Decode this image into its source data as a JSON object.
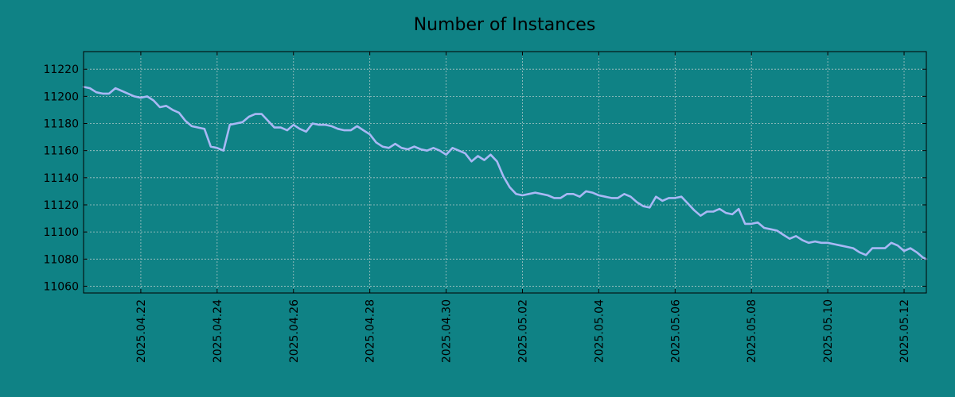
{
  "chart_data": {
    "type": "line",
    "title": "Number of Instances",
    "xlabel": "",
    "ylabel": "",
    "x_axis_type": "date",
    "xlim": [
      "2025-04-20 12:00",
      "2025-05-12 14:00"
    ],
    "ylim": [
      11055,
      11233
    ],
    "yticks": [
      11060,
      11080,
      11100,
      11120,
      11140,
      11160,
      11180,
      11200,
      11220
    ],
    "xticks": [
      "2025.04.22",
      "2025.04.24",
      "2025.04.26",
      "2025.04.28",
      "2025.04.30",
      "2025.05.02",
      "2025.05.04",
      "2025.05.06",
      "2025.05.08",
      "2025.05.10",
      "2025.05.12"
    ],
    "grid": true,
    "colors": {
      "background": "#0f8285",
      "line": "#a9b8f5"
    },
    "series": [
      {
        "x": [
          "2025-04-20 12:00",
          "2025-04-20 16:00",
          "2025-04-20 20:00",
          "2025-04-21 00:00",
          "2025-04-21 04:00",
          "2025-04-21 08:00",
          "2025-04-21 12:00",
          "2025-04-21 16:00",
          "2025-04-21 20:00",
          "2025-04-22 00:00",
          "2025-04-22 04:00",
          "2025-04-22 08:00",
          "2025-04-22 12:00",
          "2025-04-22 16:00",
          "2025-04-22 20:00",
          "2025-04-23 00:00",
          "2025-04-23 04:00",
          "2025-04-23 08:00",
          "2025-04-23 12:00",
          "2025-04-23 16:00",
          "2025-04-23 20:00",
          "2025-04-24 00:00",
          "2025-04-24 04:00",
          "2025-04-24 08:00",
          "2025-04-24 12:00",
          "2025-04-24 16:00",
          "2025-04-24 20:00",
          "2025-04-25 00:00",
          "2025-04-25 04:00",
          "2025-04-25 08:00",
          "2025-04-25 12:00",
          "2025-04-25 16:00",
          "2025-04-25 20:00",
          "2025-04-26 00:00",
          "2025-04-26 04:00",
          "2025-04-26 08:00",
          "2025-04-26 12:00",
          "2025-04-26 16:00",
          "2025-04-26 20:00",
          "2025-04-27 00:00",
          "2025-04-27 04:00",
          "2025-04-27 08:00",
          "2025-04-27 12:00",
          "2025-04-27 16:00",
          "2025-04-27 20:00",
          "2025-04-28 00:00",
          "2025-04-28 04:00",
          "2025-04-28 08:00",
          "2025-04-28 12:00",
          "2025-04-28 16:00",
          "2025-04-28 20:00",
          "2025-04-29 00:00",
          "2025-04-29 04:00",
          "2025-04-29 08:00",
          "2025-04-29 12:00",
          "2025-04-29 16:00",
          "2025-04-29 20:00",
          "2025-04-30 00:00",
          "2025-04-30 04:00",
          "2025-04-30 08:00",
          "2025-04-30 12:00",
          "2025-04-30 16:00",
          "2025-04-30 20:00",
          "2025-05-01 00:00",
          "2025-05-01 04:00",
          "2025-05-01 08:00",
          "2025-05-01 12:00",
          "2025-05-01 16:00",
          "2025-05-01 20:00",
          "2025-05-02 00:00",
          "2025-05-02 04:00",
          "2025-05-02 08:00",
          "2025-05-02 12:00",
          "2025-05-02 16:00",
          "2025-05-02 20:00",
          "2025-05-03 00:00",
          "2025-05-03 04:00",
          "2025-05-03 08:00",
          "2025-05-03 12:00",
          "2025-05-03 16:00",
          "2025-05-03 20:00",
          "2025-05-04 00:00",
          "2025-05-04 04:00",
          "2025-05-04 08:00",
          "2025-05-04 12:00",
          "2025-05-04 16:00",
          "2025-05-04 20:00",
          "2025-05-05 00:00",
          "2025-05-05 04:00",
          "2025-05-05 08:00",
          "2025-05-05 12:00",
          "2025-05-05 16:00",
          "2025-05-05 20:00",
          "2025-05-06 00:00",
          "2025-05-06 04:00",
          "2025-05-06 08:00",
          "2025-05-06 12:00",
          "2025-05-06 16:00",
          "2025-05-06 20:00",
          "2025-05-07 00:00",
          "2025-05-07 04:00",
          "2025-05-07 08:00",
          "2025-05-07 12:00",
          "2025-05-07 16:00",
          "2025-05-07 20:00",
          "2025-05-08 00:00",
          "2025-05-08 04:00",
          "2025-05-08 08:00",
          "2025-05-08 12:00",
          "2025-05-08 16:00",
          "2025-05-08 20:00",
          "2025-05-09 00:00",
          "2025-05-09 04:00",
          "2025-05-09 08:00",
          "2025-05-09 12:00",
          "2025-05-09 16:00",
          "2025-05-09 20:00",
          "2025-05-10 00:00",
          "2025-05-10 04:00",
          "2025-05-10 08:00",
          "2025-05-10 12:00",
          "2025-05-10 16:00",
          "2025-05-10 20:00",
          "2025-05-11 00:00",
          "2025-05-11 04:00",
          "2025-05-11 08:00",
          "2025-05-11 12:00",
          "2025-05-11 16:00",
          "2025-05-11 20:00",
          "2025-05-12 00:00",
          "2025-05-12 04:00",
          "2025-05-12 08:00",
          "2025-05-12 12:00",
          "2025-05-12 14:00"
        ],
        "y": [
          11207,
          11206,
          11203,
          11202,
          11202,
          11206,
          11204,
          11202,
          11200,
          11199,
          11200,
          11197,
          11192,
          11193,
          11190,
          11188,
          11182,
          11178,
          11177,
          11176,
          11163,
          11162,
          11160,
          11179,
          11180,
          11181,
          11185,
          11187,
          11187,
          11182,
          11177,
          11177,
          11175,
          11179,
          11176,
          11174,
          11180,
          11179,
          11179,
          11178,
          11176,
          11175,
          11175,
          11178,
          11175,
          11172,
          11166,
          11163,
          11162,
          11165,
          11162,
          11161,
          11163,
          11161,
          11160,
          11162,
          11160,
          11157,
          11162,
          11160,
          11158,
          11152,
          11156,
          11153,
          11157,
          11152,
          11141,
          11133,
          11128,
          11127,
          11128,
          11129,
          11128,
          11127,
          11125,
          11125,
          11128,
          11128,
          11126,
          11130,
          11129,
          11127,
          11126,
          11125,
          11125,
          11128,
          11126,
          11122,
          11119,
          11118,
          11126,
          11123,
          11125,
          11125,
          11126,
          11121,
          11116,
          11112,
          11115,
          11115,
          11117,
          11114,
          11113,
          11117,
          11106,
          11106,
          11107,
          11103,
          11102,
          11101,
          11098,
          11095,
          11097,
          11094,
          11092,
          11093,
          11092,
          11092,
          11091,
          11090,
          11089,
          11088,
          11085,
          11083,
          11088,
          11088,
          11088,
          11092,
          11090,
          11086,
          11088,
          11085,
          11081,
          11080
        ]
      }
    ]
  }
}
